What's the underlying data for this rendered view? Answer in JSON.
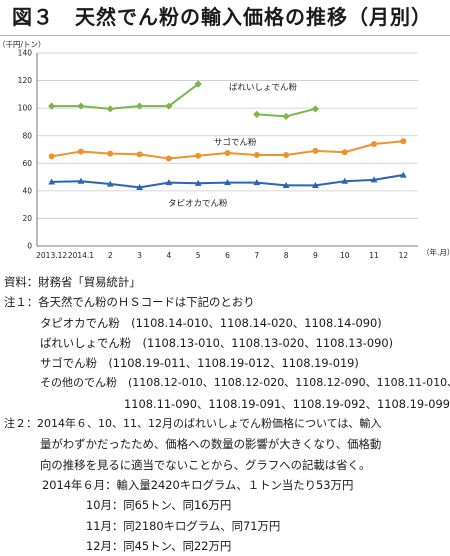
{
  "title": "図３　天然でん粉の輸入価格の推移（月別）",
  "chart_data": {
    "type": "line",
    "yunit": "（千円/トン）",
    "xunit": "（年.月）",
    "ylim": [
      0,
      140
    ],
    "yticks": [
      0,
      20,
      40,
      60,
      80,
      100,
      120,
      140
    ],
    "categories": [
      "2013.12",
      "2014.1",
      "2",
      "3",
      "4",
      "5",
      "6",
      "7",
      "8",
      "9",
      "10",
      "11",
      "12"
    ],
    "grid": true,
    "legend": "inline labels",
    "series": [
      {
        "name": "ばれいしょでん粉",
        "color": "#7ab648",
        "marker": "diamond",
        "values": [
          101.5,
          101.5,
          99.5,
          101.5,
          101.5,
          117.5,
          null,
          95.5,
          94,
          99.5,
          null,
          null,
          null
        ]
      },
      {
        "name": "サゴでん粉",
        "color": "#f0922a",
        "marker": "circle",
        "values": [
          65,
          68.5,
          67,
          66.5,
          63.5,
          65.5,
          67.5,
          66,
          66,
          69,
          68,
          74,
          76
        ]
      },
      {
        "name": "タピオカでん粉",
        "color": "#2a64b8",
        "marker": "triangle",
        "values": [
          46.5,
          47,
          45,
          42.5,
          46,
          45.5,
          46,
          46,
          44,
          44,
          47,
          48,
          51.5
        ]
      }
    ]
  },
  "notes": {
    "source": "資料：財務省「貿易統計」",
    "n1_head": "注１：各天然でん粉のＨＳコードは下記のとおり",
    "n1_tapioca": "タピオカでん粉　(1108.14-010、1108.14-020、1108.14-090)",
    "n1_potato": "ばれいしょでん粉　(1108.13-010、1108.13-020、1108.13-090)",
    "n1_sago": "サゴでん粉　(1108.19-011、1108.19-012、1108.19-019)",
    "n1_other_1": "その他のでん粉　(1108.12-010、1108.12-020、1108.12-090、1108.11-010、",
    "n1_other_2": "1108.11-090、1108.19-091、1108.19-092、1108.19-099)",
    "n2_line1": "注２：2014年６、10、11、12月のばれいしょでん粉価格については、輸入",
    "n2_line2": "量がわずかだったため、価格への数量の影響が大きくなり、価格動",
    "n2_line3": "向の推移を見るに適当でないことから、グラフへの記載は省く。",
    "jun": "2014年６月：輸入量2420キログラム、１トン当たり53万円",
    "oct": "10月：同65トン、同16万円",
    "nov": "11月：同2180キログラム、同71万円",
    "dec": "12月：同45トン、同22万円"
  }
}
